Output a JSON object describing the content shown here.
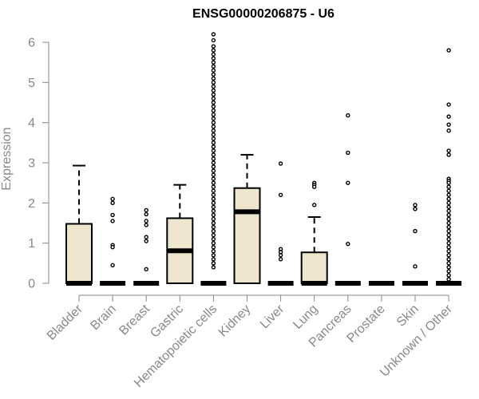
{
  "chart_data": {
    "type": "box",
    "title": "ENSG00000206875 - U6",
    "xlabel": "",
    "ylabel": "Expression",
    "ylim": [
      0,
      6.2
    ],
    "yticks": [
      0,
      1,
      2,
      3,
      4,
      5,
      6
    ],
    "categories": [
      "Bladder",
      "Brain",
      "Breast",
      "Gastric",
      "Hematopoietic cells",
      "Kidney",
      "Liver",
      "Lung",
      "Pancreas",
      "Prostate",
      "Skin",
      "Unknown / Other"
    ],
    "box_fill": "#ede6cd",
    "boxes": [
      {
        "name": "Bladder",
        "min": 0,
        "q1": 0,
        "median": 0,
        "q3": 1.48,
        "max": 2.93,
        "outliers": []
      },
      {
        "name": "Brain",
        "min": 0,
        "q1": 0,
        "median": 0,
        "q3": 0,
        "max": 0,
        "outliers": [
          2.1,
          2.0,
          1.7,
          1.55,
          0.95,
          0.9,
          0.45
        ]
      },
      {
        "name": "Breast",
        "min": 0,
        "q1": 0,
        "median": 0,
        "q3": 0,
        "max": 0,
        "outliers": [
          1.82,
          1.72,
          1.55,
          1.45,
          1.15,
          1.05,
          0.35
        ]
      },
      {
        "name": "Gastric",
        "min": 0,
        "q1": 0,
        "median": 0.81,
        "q3": 1.62,
        "max": 2.45,
        "outliers": []
      },
      {
        "name": "Hematopoietic cells",
        "min": 0,
        "q1": 0,
        "median": 0,
        "q3": 0,
        "max": 0,
        "outliers": [
          6.2,
          6.05,
          5.9,
          5.8,
          5.7,
          5.6,
          5.5,
          5.4,
          5.3,
          5.2,
          5.1,
          5.0,
          4.9,
          4.8,
          4.7,
          4.6,
          4.5,
          4.4,
          4.3,
          4.2,
          4.1,
          4.0,
          3.9,
          3.8,
          3.7,
          3.6,
          3.5,
          3.4,
          3.3,
          3.2,
          3.1,
          3.0,
          2.9,
          2.8,
          2.7,
          2.6,
          2.5,
          2.4,
          2.3,
          2.2,
          2.1,
          2.0,
          1.9,
          1.8,
          1.7,
          1.6,
          1.5,
          1.4,
          1.3,
          1.2,
          1.1,
          1.0,
          0.9,
          0.8,
          0.7,
          0.6,
          0.5,
          0.4
        ]
      },
      {
        "name": "Kidney",
        "min": 0,
        "q1": 0,
        "median": 1.78,
        "q3": 2.37,
        "max": 3.2,
        "outliers": []
      },
      {
        "name": "Liver",
        "min": 0,
        "q1": 0,
        "median": 0,
        "q3": 0,
        "max": 0,
        "outliers": [
          2.98,
          2.2,
          0.85,
          0.78,
          0.7,
          0.6
        ]
      },
      {
        "name": "Lung",
        "min": 0,
        "q1": 0,
        "median": 0,
        "q3": 0.77,
        "max": 1.65,
        "outliers": [
          2.5,
          2.45,
          2.4,
          1.95
        ]
      },
      {
        "name": "Pancreas",
        "min": 0,
        "q1": 0,
        "median": 0,
        "q3": 0,
        "max": 0,
        "outliers": [
          4.18,
          3.25,
          2.5,
          0.98
        ]
      },
      {
        "name": "Prostate",
        "min": 0,
        "q1": 0,
        "median": 0,
        "q3": 0,
        "max": 0,
        "outliers": []
      },
      {
        "name": "Skin",
        "min": 0,
        "q1": 0,
        "median": 0,
        "q3": 0,
        "max": 0,
        "outliers": [
          1.95,
          1.85,
          1.3,
          0.42
        ]
      },
      {
        "name": "Unknown / Other",
        "min": 0,
        "q1": 0,
        "median": 0,
        "q3": 0,
        "max": 0,
        "outliers": [
          5.8,
          4.45,
          4.15,
          3.95,
          3.8,
          3.3,
          3.2,
          2.6,
          2.55,
          2.5,
          2.4,
          2.3,
          2.2,
          2.1,
          2.0,
          1.9,
          1.8,
          1.7,
          1.6,
          1.5,
          1.4,
          1.3,
          1.2,
          1.1,
          1.0,
          0.9,
          0.8,
          0.7,
          0.6,
          0.5,
          0.4,
          0.3,
          0.2,
          0.1
        ]
      }
    ]
  }
}
